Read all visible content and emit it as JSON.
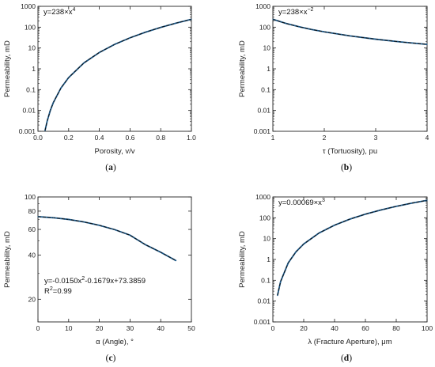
{
  "chart_data": [
    {
      "panel": "(a)",
      "panel_letter": "a",
      "type": "line",
      "xlabel": "Porosity, v/v",
      "ylabel": "Permeability, mD",
      "xscale": "linear",
      "yscale": "log",
      "xlim": [
        0.0,
        1.0
      ],
      "ylim": [
        0.001,
        1000
      ],
      "xticks": [
        0.0,
        0.2,
        0.4,
        0.6,
        0.8,
        1.0
      ],
      "xtick_labels": [
        "0.0",
        "0.2",
        "0.4",
        "0.6",
        "0.8",
        "1.0"
      ],
      "yticks": [
        0.001,
        0.01,
        0.1,
        1,
        10,
        100,
        1000
      ],
      "ytick_labels": [
        "0.001",
        "0.01",
        "0.1",
        "1",
        "10",
        "100",
        "1000"
      ],
      "annotation": {
        "base": "y=238×x",
        "sup": "4"
      },
      "series": [
        {
          "x": [
            0.046,
            0.06,
            0.08,
            0.1,
            0.15,
            0.2,
            0.3,
            0.4,
            0.5,
            0.6,
            0.7,
            0.8,
            0.9,
            1.0
          ],
          "y": [
            0.00107,
            0.00308,
            0.00975,
            0.0238,
            0.12,
            0.381,
            1.93,
            6.09,
            14.9,
            30.8,
            57.1,
            97.5,
            156,
            238
          ]
        }
      ]
    },
    {
      "panel": "(b)",
      "panel_letter": "b",
      "type": "line",
      "xlabel": "τ (Tortuosity), pu",
      "ylabel": "Permeability, mD",
      "xscale": "linear",
      "yscale": "log",
      "xlim": [
        1,
        4
      ],
      "ylim": [
        0.001,
        1000
      ],
      "xticks": [
        1,
        2,
        3,
        4
      ],
      "xtick_labels": [
        "1",
        "2",
        "3",
        "4"
      ],
      "yticks": [
        0.001,
        0.01,
        0.1,
        1,
        10,
        100,
        1000
      ],
      "ytick_labels": [
        "0.001",
        "0.01",
        "0.1",
        "1",
        "10",
        "100",
        "1000"
      ],
      "annotation": {
        "base": "y=238×x",
        "sup": "−2"
      },
      "series": [
        {
          "x": [
            1.0,
            1.25,
            1.5,
            1.75,
            2.0,
            2.5,
            3.0,
            3.5,
            4.0
          ],
          "y": [
            238,
            152,
            106,
            77.7,
            59.5,
            38.1,
            26.4,
            19.4,
            14.9
          ]
        }
      ]
    },
    {
      "panel": "(c)",
      "panel_letter": "c",
      "type": "line",
      "xlabel": "α (Angle), °",
      "ylabel": "Permeability, mD",
      "xscale": "linear",
      "yscale": "log",
      "xlim": [
        0,
        50
      ],
      "ylim": [
        14,
        100
      ],
      "xticks": [
        0,
        10,
        20,
        30,
        40,
        50
      ],
      "xtick_labels": [
        "0",
        "10",
        "20",
        "30",
        "40",
        "50"
      ],
      "yticks": [
        20,
        40,
        60,
        80,
        100
      ],
      "ytick_labels": [
        "20",
        "40",
        "60",
        "80",
        "100"
      ],
      "annotation": {
        "line1_pre": "y=-0.0150x",
        "line1_sup": "2",
        "line1_post": "-0.1679x+73.3859",
        "line2_pre": "R",
        "line2_sup": "2",
        "line2_post": "=0.99"
      },
      "series": [
        {
          "x": [
            0,
            5,
            10,
            15,
            20,
            25,
            30,
            35,
            40,
            45
          ],
          "y": [
            73.4,
            72.1,
            70.2,
            67.5,
            64.0,
            59.8,
            54.8,
            47.2,
            41.9,
            36.7
          ]
        }
      ]
    },
    {
      "panel": "(d)",
      "panel_letter": "d",
      "type": "line",
      "xlabel": "λ (Fracture Aperture), μm",
      "ylabel": "Permeability, mD",
      "xscale": "linear",
      "yscale": "log",
      "xlim": [
        0,
        100
      ],
      "ylim": [
        0.001,
        1000
      ],
      "xticks": [
        0,
        20,
        40,
        60,
        80,
        100
      ],
      "xtick_labels": [
        "0",
        "20",
        "40",
        "60",
        "80",
        "100"
      ],
      "yticks": [
        0.001,
        0.01,
        0.1,
        1,
        10,
        100,
        1000
      ],
      "ytick_labels": [
        "0.001",
        "0.01",
        "0.1",
        "1",
        "10",
        "100",
        "1000"
      ],
      "annotation": {
        "base": "y=0.00069×x",
        "sup": "3"
      },
      "series": [
        {
          "x": [
            3,
            5,
            10,
            15,
            20,
            30,
            40,
            50,
            60,
            70,
            80,
            90,
            100
          ],
          "y": [
            0.0186,
            0.0863,
            0.69,
            2.33,
            5.52,
            18.6,
            44.2,
            86.3,
            149,
            237,
            353,
            503,
            690
          ]
        }
      ]
    }
  ],
  "colors": {
    "curve": "#1e5a8a",
    "dash": "#0b0b0b",
    "axis": "#222222"
  }
}
